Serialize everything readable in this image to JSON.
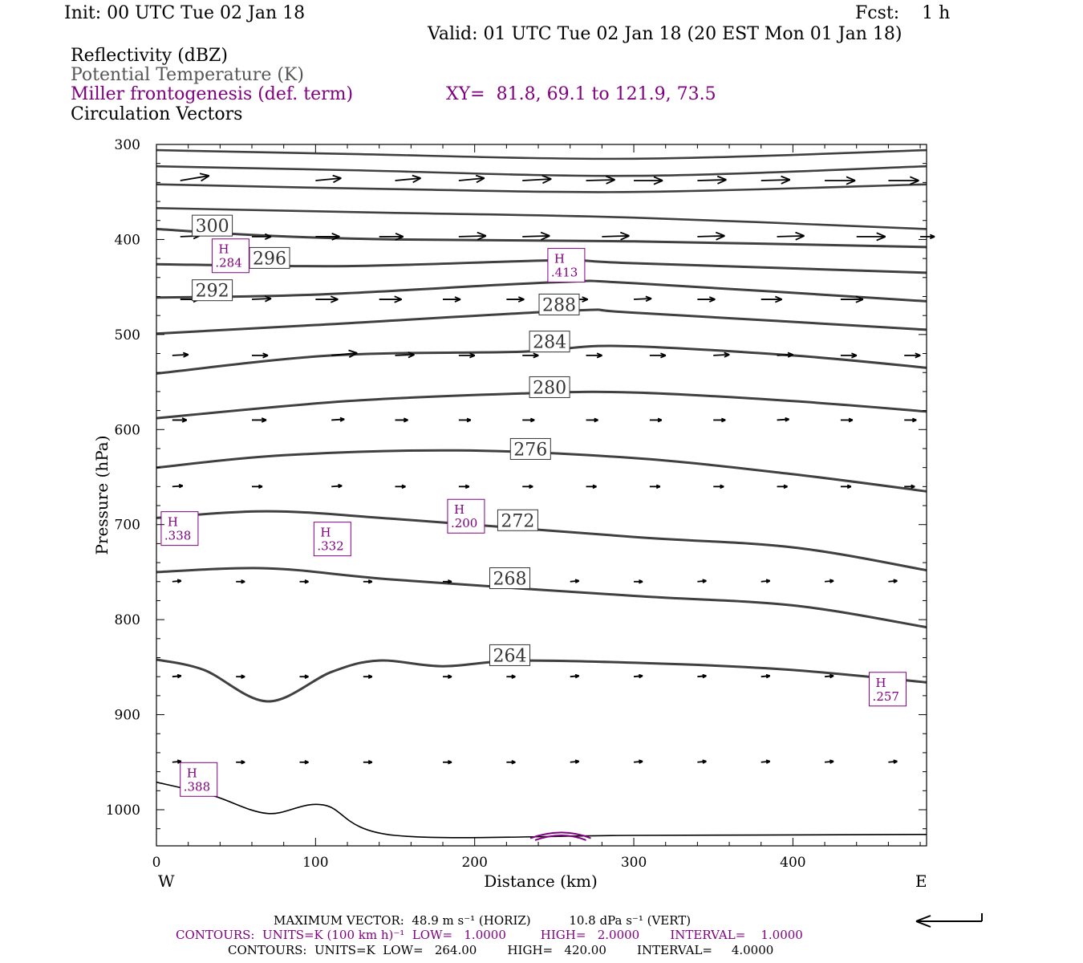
{
  "header": {
    "init": "Init: 00 UTC Tue 02 Jan 18",
    "fcst": "Fcst:    1 h",
    "valid": "Valid: 01 UTC Tue 02 Jan 18 (20 EST Mon 01 Jan 18)"
  },
  "fields": {
    "reflectivity": "Reflectivity (dBZ)",
    "theta": "Potential Temperature (K)",
    "frontogenesis": "Miller frontogenesis (def. term)",
    "xy": "XY=  81.8, 69.1 to 121.9, 73.5",
    "vectors": "Circulation Vectors"
  },
  "colors": {
    "theta": "#404040",
    "frontogenesis": "#800080",
    "vectors": "#000000",
    "axis": "#000000"
  },
  "chart_data": {
    "type": "line",
    "title": "",
    "xlabel": "Distance (km)",
    "ylabel": "Pressure (hPa)",
    "xlim": [
      0,
      484
    ],
    "ylim": [
      1038,
      300
    ],
    "xticks": [
      0,
      100,
      200,
      300,
      400
    ],
    "yticks": [
      300,
      400,
      500,
      600,
      700,
      800,
      900,
      1000
    ],
    "end_labels": {
      "left": "W",
      "right": "E"
    },
    "theta_contours": [
      {
        "label": "",
        "points": [
          [
            0,
            306
          ],
          [
            120,
            310
          ],
          [
            300,
            315
          ],
          [
            484,
            306
          ]
        ]
      },
      {
        "label": "",
        "points": [
          [
            0,
            323
          ],
          [
            120,
            327
          ],
          [
            300,
            333
          ],
          [
            484,
            323
          ]
        ]
      },
      {
        "label": "",
        "points": [
          [
            0,
            342
          ],
          [
            150,
            347
          ],
          [
            300,
            350
          ],
          [
            484,
            342
          ]
        ]
      },
      {
        "label": "",
        "points": [
          [
            0,
            367
          ],
          [
            150,
            372
          ],
          [
            300,
            377
          ],
          [
            484,
            389
          ]
        ]
      },
      {
        "label": "300",
        "label_at": [
          24,
          393
        ],
        "points": [
          [
            0,
            389
          ],
          [
            70,
            396
          ],
          [
            150,
            400
          ],
          [
            300,
            402
          ],
          [
            484,
            408
          ]
        ]
      },
      {
        "label": "296",
        "label_at": [
          60,
          427
        ],
        "points": [
          [
            0,
            426
          ],
          [
            120,
            428
          ],
          [
            250,
            422
          ],
          [
            300,
            425
          ],
          [
            484,
            435
          ]
        ]
      },
      {
        "label": "292",
        "label_at": [
          24,
          461
        ],
        "points": [
          [
            0,
            461
          ],
          [
            100,
            458
          ],
          [
            250,
            445
          ],
          [
            300,
            446
          ],
          [
            484,
            465
          ]
        ]
      },
      {
        "label": "288",
        "label_at": [
          242,
          476
        ],
        "points": [
          [
            0,
            499
          ],
          [
            100,
            490
          ],
          [
            260,
            475
          ],
          [
            300,
            477
          ],
          [
            484,
            495
          ]
        ]
      },
      {
        "label": "284",
        "label_at": [
          236,
          515
        ],
        "points": [
          [
            0,
            541
          ],
          [
            110,
            522
          ],
          [
            230,
            518
          ],
          [
            290,
            512
          ],
          [
            400,
            522
          ],
          [
            484,
            535
          ]
        ]
      },
      {
        "label": "280",
        "label_at": [
          236,
          563
        ],
        "points": [
          [
            0,
            588
          ],
          [
            120,
            570
          ],
          [
            230,
            562
          ],
          [
            300,
            561
          ],
          [
            400,
            570
          ],
          [
            484,
            581
          ]
        ]
      },
      {
        "label": "276",
        "label_at": [
          224,
          628
        ],
        "points": [
          [
            0,
            640
          ],
          [
            80,
            627
          ],
          [
            190,
            622
          ],
          [
            300,
            630
          ],
          [
            400,
            647
          ],
          [
            484,
            665
          ]
        ]
      },
      {
        "label": "272",
        "label_at": [
          216,
          703
        ],
        "points": [
          [
            0,
            693
          ],
          [
            70,
            686
          ],
          [
            150,
            694
          ],
          [
            300,
            713
          ],
          [
            400,
            724
          ],
          [
            484,
            748
          ]
        ]
      },
      {
        "label": "268",
        "label_at": [
          211,
          764
        ],
        "points": [
          [
            0,
            750
          ],
          [
            70,
            746
          ],
          [
            150,
            758
          ],
          [
            300,
            775
          ],
          [
            400,
            785
          ],
          [
            484,
            808
          ]
        ]
      },
      {
        "label": "264",
        "label_at": [
          211,
          845
        ],
        "points": [
          [
            0,
            842
          ],
          [
            30,
            853
          ],
          [
            70,
            886
          ],
          [
            110,
            855
          ],
          [
            140,
            843
          ],
          [
            180,
            849
          ],
          [
            230,
            843
          ],
          [
            330,
            847
          ],
          [
            400,
            853
          ],
          [
            484,
            866
          ]
        ]
      },
      {
        "label": "",
        "points": [
          [
            0,
            971
          ],
          [
            35,
            985
          ],
          [
            70,
            1004
          ],
          [
            105,
            995
          ],
          [
            150,
            1027
          ],
          [
            300,
            1027
          ],
          [
            484,
            1026
          ]
        ]
      }
    ],
    "frontogenesis_maxima": [
      {
        "label": "H",
        "value": ".284",
        "at": [
          37,
          418
        ]
      },
      {
        "label": "H",
        "value": ".413",
        "at": [
          248,
          428
        ]
      },
      {
        "label": "H",
        "value": ".200",
        "at": [
          185,
          692
        ]
      },
      {
        "label": "H",
        "value": ".338",
        "at": [
          5,
          705
        ]
      },
      {
        "label": "H",
        "value": ".332",
        "at": [
          101,
          716
        ]
      },
      {
        "label": "H",
        "value": ".257",
        "at": [
          450,
          874
        ]
      },
      {
        "label": "H",
        "value": ".388",
        "at": [
          17,
          969
        ]
      }
    ],
    "vector_rows": [
      {
        "p": 338,
        "vectors": [
          [
            15,
            36,
            -6
          ],
          [
            100,
            32,
            -3
          ],
          [
            150,
            32,
            -3
          ],
          [
            190,
            32,
            -3
          ],
          [
            230,
            36,
            -2
          ],
          [
            270,
            36,
            -1
          ],
          [
            300,
            36,
            0
          ],
          [
            340,
            36,
            -1
          ],
          [
            380,
            36,
            -1
          ],
          [
            420,
            38,
            0
          ],
          [
            460,
            38,
            0
          ]
        ]
      },
      {
        "p": 397,
        "vectors": [
          [
            15,
            24,
            -1
          ],
          [
            60,
            24,
            0
          ],
          [
            100,
            30,
            0
          ],
          [
            140,
            30,
            0
          ],
          [
            190,
            34,
            -1
          ],
          [
            230,
            34,
            -1
          ],
          [
            280,
            34,
            -1
          ],
          [
            340,
            34,
            -1
          ],
          [
            390,
            34,
            -1
          ],
          [
            440,
            36,
            0
          ],
          [
            480,
            18,
            0
          ]
        ]
      },
      {
        "p": 463,
        "vectors": [
          [
            15,
            24,
            0
          ],
          [
            60,
            24,
            -1
          ],
          [
            100,
            28,
            0
          ],
          [
            140,
            28,
            0
          ],
          [
            180,
            22,
            0
          ],
          [
            220,
            22,
            0
          ],
          [
            260,
            22,
            0
          ],
          [
            300,
            22,
            -1
          ],
          [
            340,
            22,
            0
          ],
          [
            380,
            26,
            0
          ],
          [
            430,
            28,
            0
          ]
        ]
      },
      {
        "p": 522,
        "vectors": [
          [
            10,
            20,
            -1
          ],
          [
            60,
            20,
            0
          ],
          [
            110,
            32,
            -3
          ],
          [
            150,
            24,
            -1
          ],
          [
            190,
            20,
            0
          ],
          [
            230,
            20,
            0
          ],
          [
            270,
            20,
            0
          ],
          [
            310,
            20,
            0
          ],
          [
            350,
            20,
            -1
          ],
          [
            390,
            20,
            -1
          ],
          [
            430,
            20,
            0
          ],
          [
            470,
            20,
            0
          ]
        ]
      },
      {
        "p": 590,
        "vectors": [
          [
            10,
            18,
            0
          ],
          [
            60,
            18,
            0
          ],
          [
            110,
            16,
            -1
          ],
          [
            150,
            16,
            0
          ],
          [
            190,
            15,
            0
          ],
          [
            230,
            15,
            0
          ],
          [
            270,
            15,
            0
          ],
          [
            310,
            15,
            0
          ],
          [
            350,
            15,
            0
          ],
          [
            390,
            15,
            -1
          ],
          [
            430,
            15,
            0
          ],
          [
            470,
            15,
            0
          ]
        ]
      },
      {
        "p": 660,
        "vectors": [
          [
            10,
            13,
            -1
          ],
          [
            60,
            13,
            0
          ],
          [
            110,
            13,
            -1
          ],
          [
            150,
            13,
            0
          ],
          [
            190,
            13,
            0
          ],
          [
            230,
            13,
            0
          ],
          [
            270,
            13,
            0
          ],
          [
            310,
            13,
            0
          ],
          [
            350,
            13,
            0
          ],
          [
            390,
            13,
            0
          ],
          [
            430,
            13,
            0
          ],
          [
            470,
            13,
            0
          ]
        ]
      },
      {
        "p": 760,
        "vectors": [
          [
            10,
            11,
            -1
          ],
          [
            50,
            11,
            0
          ],
          [
            90,
            11,
            0
          ],
          [
            130,
            11,
            0
          ],
          [
            180,
            11,
            0
          ],
          [
            220,
            11,
            0
          ],
          [
            260,
            11,
            -1
          ],
          [
            300,
            11,
            0
          ],
          [
            340,
            11,
            -1
          ],
          [
            380,
            11,
            -1
          ],
          [
            420,
            11,
            -1
          ],
          [
            460,
            11,
            -1
          ]
        ]
      },
      {
        "p": 860,
        "vectors": [
          [
            10,
            11,
            -1
          ],
          [
            50,
            11,
            0
          ],
          [
            90,
            11,
            0
          ],
          [
            130,
            11,
            0
          ],
          [
            180,
            11,
            0
          ],
          [
            220,
            11,
            0
          ],
          [
            260,
            11,
            -1
          ],
          [
            300,
            11,
            -1
          ],
          [
            340,
            11,
            -1
          ],
          [
            380,
            11,
            -1
          ],
          [
            420,
            11,
            -1
          ],
          [
            460,
            11,
            -1
          ]
        ]
      },
      {
        "p": 950,
        "vectors": [
          [
            10,
            11,
            -1
          ],
          [
            50,
            11,
            0
          ],
          [
            90,
            11,
            0
          ],
          [
            130,
            11,
            0
          ],
          [
            180,
            11,
            0
          ],
          [
            220,
            11,
            0
          ],
          [
            260,
            11,
            -1
          ],
          [
            300,
            11,
            -1
          ],
          [
            340,
            11,
            -1
          ],
          [
            380,
            11,
            -1
          ],
          [
            420,
            11,
            -1
          ],
          [
            460,
            11,
            -1
          ]
        ]
      }
    ]
  },
  "footer": {
    "max_vector": "MAXIMUM VECTOR:  48.9 m s⁻¹ (HORIZ)          10.8 dPa s⁻¹ (VERT)",
    "contours_fronto": "CONTOURS:  UNITS=K (100 km h)⁻¹  LOW=   1.0000         HIGH=   2.0000        INTERVAL=    1.0000",
    "contours_theta": "CONTOURS:  UNITS=K  LOW=   264.00        HIGH=   420.00        INTERVAL=     4.0000"
  }
}
